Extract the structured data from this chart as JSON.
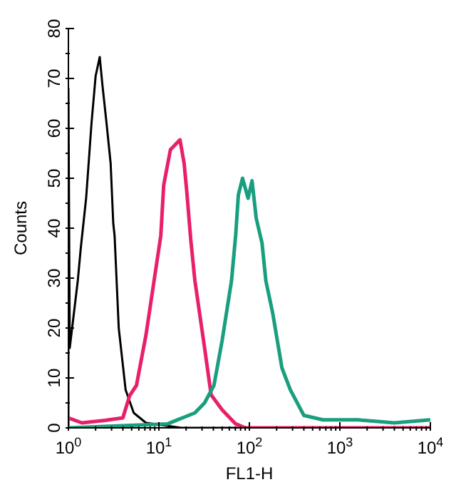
{
  "chart_data": {
    "type": "line",
    "xlabel": "FL1-H",
    "ylabel": "Counts",
    "log": "x",
    "xlim": [
      1,
      10000
    ],
    "ylim": [
      0,
      80
    ],
    "xticks": [
      {
        "value": 1,
        "label": "10$^{0}$"
      },
      {
        "value": 2,
        "label": null
      },
      {
        "value": 3,
        "label": null
      },
      {
        "value": 4,
        "label": null
      },
      {
        "value": 5,
        "label": null
      },
      {
        "value": 6,
        "label": null
      },
      {
        "value": 7,
        "label": null
      },
      {
        "value": 8,
        "label": null
      },
      {
        "value": 9,
        "label": null
      },
      {
        "value": 10,
        "label": "10$^{1}$"
      },
      {
        "value": 20,
        "label": null
      },
      {
        "value": 30,
        "label": null
      },
      {
        "value": 40,
        "label": null
      },
      {
        "value": 50,
        "label": null
      },
      {
        "value": 60,
        "label": null
      },
      {
        "value": 70,
        "label": null
      },
      {
        "value": 80,
        "label": null
      },
      {
        "value": 90,
        "label": null
      },
      {
        "value": 100,
        "label": "10$^{2}$"
      },
      {
        "value": 200,
        "label": null
      },
      {
        "value": 300,
        "label": null
      },
      {
        "value": 400,
        "label": null
      },
      {
        "value": 500,
        "label": null
      },
      {
        "value": 600,
        "label": null
      },
      {
        "value": 700,
        "label": null
      },
      {
        "value": 800,
        "label": null
      },
      {
        "value": 900,
        "label": null
      },
      {
        "value": 1000,
        "label": "10$^{3}$"
      },
      {
        "value": 2000,
        "label": null
      },
      {
        "value": 3000,
        "label": null
      },
      {
        "value": 4000,
        "label": null
      },
      {
        "value": 5000,
        "label": null
      },
      {
        "value": 6000,
        "label": null
      },
      {
        "value": 7000,
        "label": null
      },
      {
        "value": 8000,
        "label": null
      },
      {
        "value": 9000,
        "label": null
      },
      {
        "value": 10000,
        "label": "10$^{4}$"
      }
    ],
    "yticks": [
      0,
      {
        "value": 5,
        "label": null
      },
      10,
      {
        "value": 15,
        "label": null
      },
      20,
      {
        "value": 25,
        "label": null
      },
      30,
      {
        "value": 35,
        "label": null
      },
      40,
      {
        "value": 45,
        "label": null
      },
      50,
      {
        "value": 55,
        "label": null
      },
      60,
      {
        "value": 65,
        "label": null
      },
      70,
      {
        "value": 75,
        "label": null
      },
      80
    ],
    "marker": "none",
    "line_style": "solid",
    "series": [
      {
        "color": "#000000",
        "x": [
          1,
          1,
          1.035,
          1.27,
          1.37,
          1.57,
          1.8,
          2.0,
          2.22,
          2.38,
          2.64,
          2.93,
          3.13,
          3.24,
          3.6,
          4.29,
          5.27,
          7.2,
          11.3,
          17.7,
          10000
        ],
        "values": [
          0,
          68,
          16,
          29.5,
          36,
          46,
          61,
          70.5,
          74.3,
          68.6,
          61,
          53,
          41,
          38.5,
          20,
          7.6,
          3,
          1,
          0.5,
          0,
          0
        ]
      },
      {
        "color": "#e8206a",
        "x": [
          1,
          1.41,
          2.55,
          4.0,
          4.74,
          5.65,
          7.2,
          8.85,
          10.5,
          11.3,
          13.4,
          17.1,
          19.0,
          20.3,
          22.5,
          25.0,
          32.0,
          37.8,
          50,
          70.5,
          90,
          10000
        ],
        "values": [
          2,
          1,
          1.5,
          2,
          6.4,
          8.5,
          18.6,
          29.5,
          38.5,
          48.6,
          55.7,
          57.7,
          53,
          47.5,
          37.7,
          29.5,
          16,
          6.6,
          3.6,
          0.8,
          0,
          0
        ]
      },
      {
        "color": "#1a9e80",
        "x": [
          1,
          12.5,
          25,
          32,
          40.6,
          50,
          63.5,
          70.5,
          75.6,
          84,
          96.8,
          107,
          119,
          138,
          152,
          181,
          229,
          284,
          400,
          648,
          1600,
          4000,
          10000
        ],
        "values": [
          0,
          0.8,
          3,
          5,
          8.5,
          17.5,
          29.5,
          38.5,
          46.7,
          50,
          46,
          49.5,
          42,
          37,
          29.5,
          23,
          12,
          7.6,
          2.5,
          1.6,
          1.6,
          1,
          1.6
        ]
      }
    ]
  }
}
